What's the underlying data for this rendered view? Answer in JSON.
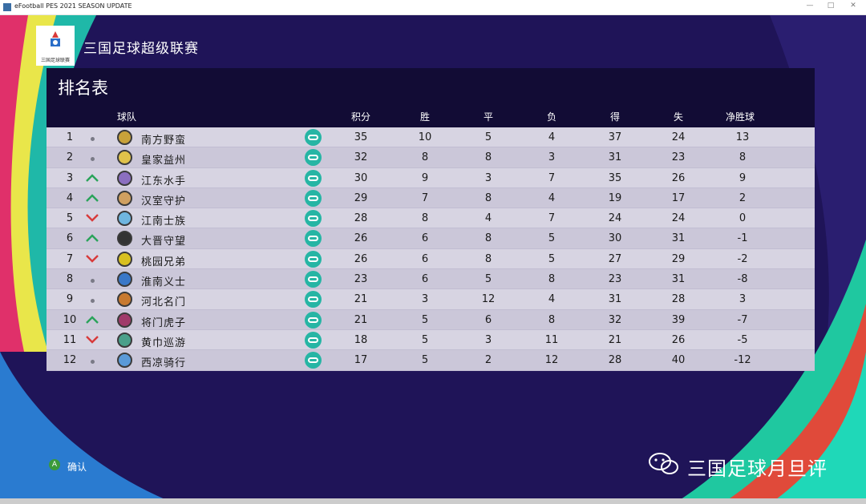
{
  "window": {
    "title": "eFootball PES 2021 SEASON UPDATE",
    "minimize": "—",
    "maximize": "□",
    "close": "✕"
  },
  "league": {
    "name": "三国足球超级联赛",
    "logo_caption": "三国足球联赛"
  },
  "standings": {
    "title": "排名表",
    "headers": {
      "team": "球队",
      "pts": "积分",
      "w": "胜",
      "d": "平",
      "l": "负",
      "gf": "得",
      "ga": "失",
      "gd": "净胜球"
    },
    "rows": [
      {
        "rank": "1",
        "trend": "same",
        "name": "南方野蛮",
        "pts": "35",
        "w": "10",
        "d": "5",
        "l": "4",
        "gf": "37",
        "ga": "24",
        "gd": "13",
        "crest": "#c8a23a"
      },
      {
        "rank": "2",
        "trend": "same",
        "name": "皇家益州",
        "pts": "32",
        "w": "8",
        "d": "8",
        "l": "3",
        "gf": "31",
        "ga": "23",
        "gd": "8",
        "crest": "#e0c24a"
      },
      {
        "rank": "3",
        "trend": "up",
        "name": "江东水手",
        "pts": "30",
        "w": "9",
        "d": "3",
        "l": "7",
        "gf": "35",
        "ga": "26",
        "gd": "9",
        "crest": "#8b6fc0"
      },
      {
        "rank": "4",
        "trend": "up",
        "name": "汉室守护",
        "pts": "29",
        "w": "7",
        "d": "8",
        "l": "4",
        "gf": "19",
        "ga": "17",
        "gd": "2",
        "crest": "#d0a060"
      },
      {
        "rank": "5",
        "trend": "down",
        "name": "江南士族",
        "pts": "28",
        "w": "8",
        "d": "4",
        "l": "7",
        "gf": "24",
        "ga": "24",
        "gd": "0",
        "crest": "#6fb6e0"
      },
      {
        "rank": "6",
        "trend": "up",
        "name": "大晋守望",
        "pts": "26",
        "w": "6",
        "d": "8",
        "l": "5",
        "gf": "30",
        "ga": "31",
        "gd": "-1",
        "crest": "#333333"
      },
      {
        "rank": "7",
        "trend": "down",
        "name": "桃园兄弟",
        "pts": "26",
        "w": "6",
        "d": "8",
        "l": "5",
        "gf": "27",
        "ga": "29",
        "gd": "-2",
        "crest": "#d8c020"
      },
      {
        "rank": "8",
        "trend": "same",
        "name": "淮南义士",
        "pts": "23",
        "w": "6",
        "d": "5",
        "l": "8",
        "gf": "23",
        "ga": "31",
        "gd": "-8",
        "crest": "#3a78c8"
      },
      {
        "rank": "9",
        "trend": "same",
        "name": "河北名门",
        "pts": "21",
        "w": "3",
        "d": "12",
        "l": "4",
        "gf": "31",
        "ga": "28",
        "gd": "3",
        "crest": "#c87a30"
      },
      {
        "rank": "10",
        "trend": "up",
        "name": "将门虎子",
        "pts": "21",
        "w": "5",
        "d": "6",
        "l": "8",
        "gf": "32",
        "ga": "39",
        "gd": "-7",
        "crest": "#a03a6a"
      },
      {
        "rank": "11",
        "trend": "down",
        "name": "黄巾巡游",
        "pts": "18",
        "w": "5",
        "d": "3",
        "l": "11",
        "gf": "21",
        "ga": "26",
        "gd": "-5",
        "crest": "#4aa08a"
      },
      {
        "rank": "12",
        "trend": "same",
        "name": "西凉骑行",
        "pts": "17",
        "w": "5",
        "d": "2",
        "l": "12",
        "gf": "28",
        "ga": "40",
        "gd": "-12",
        "crest": "#5a9ad8"
      }
    ]
  },
  "footer": {
    "button_glyph": "A",
    "confirm_label": "确认"
  },
  "watermark": {
    "text": "三国足球月旦评"
  },
  "colors": {
    "background": "#1f1458",
    "panel_header": "#120c35",
    "row": "#d7d4e2",
    "trend_up": "#2aa35a",
    "trend_down": "#d83a3a",
    "controller": "#26b5a4"
  }
}
